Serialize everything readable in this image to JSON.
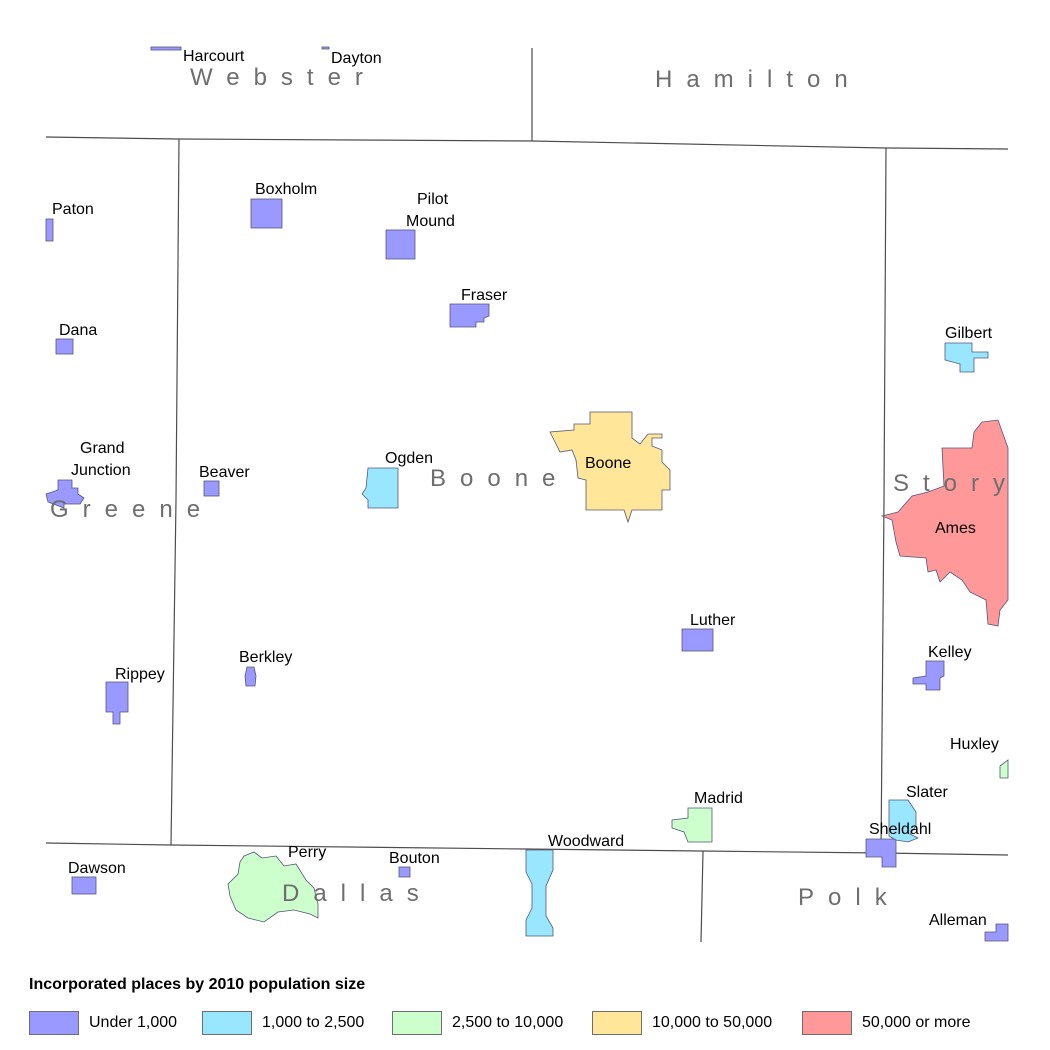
{
  "colors": {
    "under_1000": "#9999ff",
    "c1000_2500": "#99e6ff",
    "c2500_10000": "#ccffcc",
    "c10000_50000": "#ffe699",
    "c50000_plus": "#ff9999",
    "boundary": "#4d4d4d",
    "county_label": "#6e6e6e"
  },
  "counties": {
    "webster": "Webster",
    "hamilton": "Hamilton",
    "greene": "Greene",
    "boone": "Boone",
    "story": "Story",
    "dallas": "Dallas",
    "polk": "Polk"
  },
  "places": {
    "harcourt": "Harcourt",
    "dayton": "Dayton",
    "paton": "Paton",
    "boxholm": "Boxholm",
    "pilot_mound_1": "Pilot",
    "pilot_mound_2": "Mound",
    "fraser": "Fraser",
    "dana": "Dana",
    "gilbert": "Gilbert",
    "grand_junction_1": "Grand",
    "grand_junction_2": "Junction",
    "beaver": "Beaver",
    "ogden": "Ogden",
    "boone": "Boone",
    "ames": "Ames",
    "luther": "Luther",
    "kelley": "Kelley",
    "berkley": "Berkley",
    "rippey": "Rippey",
    "huxley": "Huxley",
    "slater": "Slater",
    "madrid": "Madrid",
    "sheldahl": "Sheldahl",
    "woodward": "Woodward",
    "perry": "Perry",
    "bouton": "Bouton",
    "dawson": "Dawson",
    "alleman": "Alleman"
  },
  "legend": {
    "title": "Incorporated places by 2010 population size",
    "items": [
      {
        "label": "Under 1,000",
        "color": "#9999ff"
      },
      {
        "label": "1,000 to 2,500",
        "color": "#99e6ff"
      },
      {
        "label": "2,500 to 10,000",
        "color": "#ccffcc"
      },
      {
        "label": "10,000 to 50,000",
        "color": "#ffe699"
      },
      {
        "label": "50,000 or more",
        "color": "#ff9999"
      }
    ]
  }
}
